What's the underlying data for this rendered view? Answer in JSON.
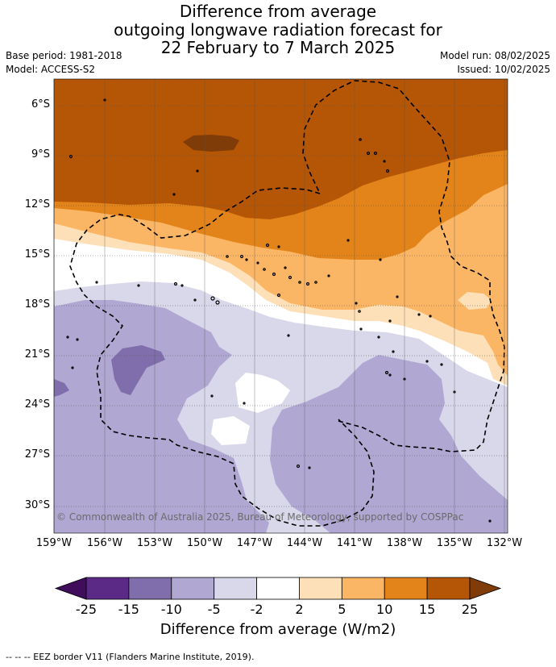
{
  "header": {
    "title_lines": [
      "Difference from average",
      "outgoing longwave radiation forecast for",
      "22 February to 7 March 2025"
    ],
    "base_period": "Base period: 1981-2018",
    "model": "Model: ACCESS-S2",
    "model_run": "Model run: 08/02/2025",
    "issued": "Issued: 10/02/2025"
  },
  "map": {
    "copyright": "© Commonwealth of Australia 2025, Bureau of Meteorology, supported by COSPPac",
    "lat_labels": [
      "6°S",
      "9°S",
      "12°S",
      "15°S",
      "18°S",
      "21°S",
      "24°S",
      "27°S",
      "30°S"
    ],
    "lon_labels": [
      "159°W",
      "156°W",
      "153°W",
      "150°W",
      "147°W",
      "144°W",
      "141°W",
      "138°W",
      "135°W",
      "132°W"
    ]
  },
  "colorbar": {
    "title": "Difference from average (W/m2)",
    "ticks": [
      "-25",
      "-15",
      "-10",
      "-5",
      "-2",
      "2",
      "5",
      "10",
      "15",
      "25"
    ],
    "colors": {
      "lt_neg25": "#3f0d5c",
      "neg25_neg15": "#5b2a86",
      "neg15_neg10": "#7f6eab",
      "neg10_neg5": "#b0a8d2",
      "neg5_neg2": "#d8d8ea",
      "neg2_2": "#ffffff",
      "2_5": "#fde0b8",
      "5_10": "#fbb665",
      "10_15": "#e3841a",
      "15_25": "#b45605",
      "gt_25": "#7f3b08"
    }
  },
  "footnote": "--  --  -- EEZ border V11 (Flanders Marine Institute, 2019)."
}
